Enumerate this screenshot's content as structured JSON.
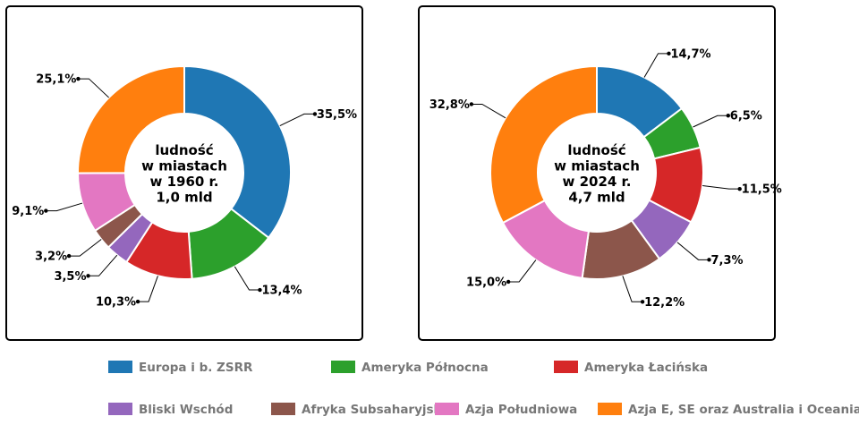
{
  "chart_data": [
    {
      "type": "pie",
      "subtype": "donut",
      "center_label": [
        "ludność",
        "w miastach",
        "w 1960 r.",
        "1,0 mld"
      ],
      "categories": [
        "Europa i b. ZSRR",
        "Ameryka Północna",
        "Ameryka Łacińska",
        "Bliski Wschód",
        "Afryka Subsaharyjska",
        "Azja Południowa",
        "Azja E, SE oraz Australia i Oceania"
      ],
      "values": [
        35.5,
        13.4,
        10.3,
        3.5,
        3.2,
        9.1,
        25.1
      ],
      "labels": [
        "35,5%",
        "13,4%",
        "10,3%",
        "3,5%",
        "3,2%",
        "9,1%",
        "25,1%"
      ]
    },
    {
      "type": "pie",
      "subtype": "donut",
      "center_label": [
        "ludność",
        "w miastach",
        "w 2024 r.",
        "4,7 mld"
      ],
      "categories": [
        "Europa i b. ZSRR",
        "Ameryka Północna",
        "Ameryka Łacińska",
        "Bliski Wschód",
        "Afryka Subsaharyjska",
        "Azja Południowa",
        "Azja E, SE oraz Australia i Oceania"
      ],
      "values": [
        14.7,
        6.5,
        11.5,
        7.3,
        12.2,
        15.0,
        32.8
      ],
      "labels": [
        "14,7%",
        "6,5%",
        "11,5%",
        "7,3%",
        "12,2%",
        "15,0%",
        "32,8%"
      ]
    }
  ],
  "legend": {
    "placement": "bottom",
    "items": [
      "Europa i b. ZSRR",
      "Ameryka Północna",
      "Ameryka Łacińska",
      "Bliski Wschód",
      "Afryka Subsaharyjska",
      "Azja Południowa",
      "Azja E, SE oraz Australia i Oceania"
    ]
  },
  "colors": [
    "#1f77b4",
    "#2ca02c",
    "#d62728",
    "#9467bd",
    "#8c564b",
    "#e377c2",
    "#ff7f0e"
  ]
}
